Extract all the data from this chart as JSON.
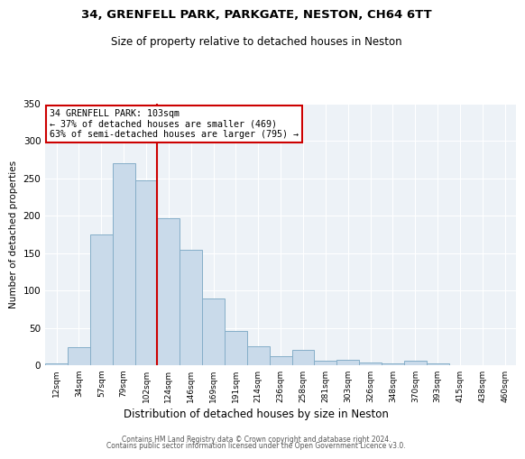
{
  "title1": "34, GRENFELL PARK, PARKGATE, NESTON, CH64 6TT",
  "title2": "Size of property relative to detached houses in Neston",
  "xlabel": "Distribution of detached houses by size in Neston",
  "ylabel": "Number of detached properties",
  "bar_labels": [
    "12sqm",
    "34sqm",
    "57sqm",
    "79sqm",
    "102sqm",
    "124sqm",
    "146sqm",
    "169sqm",
    "191sqm",
    "214sqm",
    "236sqm",
    "258sqm",
    "281sqm",
    "303sqm",
    "326sqm",
    "348sqm",
    "370sqm",
    "393sqm",
    "415sqm",
    "438sqm",
    "460sqm"
  ],
  "bar_values": [
    2,
    24,
    175,
    270,
    247,
    197,
    155,
    89,
    46,
    25,
    12,
    20,
    6,
    7,
    4,
    2,
    6,
    2,
    0,
    0,
    0
  ],
  "bar_color": "#c9daea",
  "bar_edgecolor": "#85aec8",
  "vline_x": 4.5,
  "vline_color": "#cc0000",
  "annotation_line1": "34 GRENFELL PARK: 103sqm",
  "annotation_line2": "← 37% of detached houses are smaller (469)",
  "annotation_line3": "63% of semi-detached houses are larger (795) →",
  "annotation_box_edgecolor": "#cc0000",
  "footer1": "Contains HM Land Registry data © Crown copyright and database right 2024.",
  "footer2": "Contains public sector information licensed under the Open Government Licence v3.0.",
  "ylim": [
    0,
    350
  ],
  "yticks": [
    0,
    50,
    100,
    150,
    200,
    250,
    300,
    350
  ],
  "background_color": "#edf2f7",
  "grid_color": "#ffffff"
}
